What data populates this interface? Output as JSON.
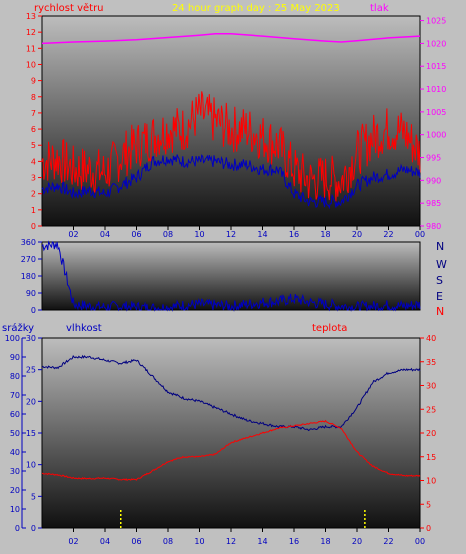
{
  "header": {
    "left_label": "rychlost větru",
    "title": "24 hour graph day : 25 May 2023",
    "right_label": "tlak"
  },
  "bottom_header": {
    "rain_label": "srážky",
    "humidity_label": "vlhkost",
    "temp_label": "teplota"
  },
  "compass": [
    "N",
    "W",
    "S",
    "E",
    "N"
  ],
  "x_ticks": [
    "02",
    "04",
    "06",
    "08",
    "10",
    "12",
    "14",
    "16",
    "18",
    "20",
    "22",
    "00"
  ],
  "colors": {
    "background": "#c0c0c0",
    "wind": "#ff0000",
    "wind_avg": "#0000c0",
    "pressure": "#ff00ff",
    "humidity": "#000080",
    "temperature": "#ff0000",
    "rain": "#ffff00",
    "axis_blue": "#0000c0",
    "title": "#ffff00"
  },
  "chart_data": [
    {
      "name": "wind-pressure",
      "type": "line",
      "x_range": [
        0,
        24
      ],
      "y_left": {
        "min": 0,
        "max": 13,
        "ticks": [
          "0",
          "1",
          "2",
          "3",
          "4",
          "5",
          "6",
          "7",
          "8",
          "9",
          "10",
          "11",
          "12",
          "13"
        ]
      },
      "y_right": {
        "min": 980,
        "max": 1026,
        "ticks": [
          "980",
          "985",
          "990",
          "995",
          "1000",
          "1005",
          "1010",
          "1015",
          "1020",
          "1025"
        ]
      },
      "series": [
        {
          "key": "pressure",
          "axis": "right",
          "x": [
            0,
            2,
            4,
            6,
            8,
            10,
            11,
            12,
            14,
            16,
            18,
            19,
            20,
            22,
            24
          ],
          "y": [
            1020,
            1020.3,
            1020.5,
            1020.8,
            1021.3,
            1021.8,
            1022.1,
            1022.1,
            1021.6,
            1021,
            1020.5,
            1020.3,
            1020.6,
            1021.2,
            1021.6
          ]
        },
        {
          "key": "wind_gust",
          "axis": "left",
          "x": [
            0,
            1,
            2,
            3,
            4,
            5,
            6,
            7,
            8,
            9,
            10,
            11,
            12,
            13,
            14,
            15,
            16,
            17,
            18,
            19,
            20,
            21,
            22,
            23,
            24
          ],
          "y": [
            4,
            4.2,
            3.5,
            3.5,
            3.3,
            4.3,
            5,
            5.5,
            6,
            6,
            7,
            6.5,
            6,
            6,
            5.5,
            5,
            3.5,
            2.8,
            3,
            2.8,
            4.5,
            5.5,
            6,
            5.8,
            4.5
          ]
        },
        {
          "key": "wind_avg",
          "axis": "left",
          "x": [
            0,
            1,
            2,
            3,
            4,
            5,
            6,
            7,
            8,
            9,
            10,
            11,
            12,
            13,
            14,
            15,
            16,
            17,
            18,
            19,
            20,
            21,
            22,
            23,
            24
          ],
          "y": [
            2.3,
            2.5,
            2,
            2.2,
            2,
            2.5,
            3,
            4,
            4.2,
            4,
            4,
            4,
            3.8,
            3.8,
            3.5,
            3.5,
            2,
            1.5,
            1.5,
            1.5,
            2.5,
            3,
            3.2,
            3.5,
            3.3
          ]
        }
      ]
    },
    {
      "name": "wind-direction",
      "type": "line",
      "x_range": [
        0,
        24
      ],
      "y": {
        "min": 0,
        "max": 360,
        "ticks": [
          "0",
          "90",
          "180",
          "270",
          "360"
        ]
      },
      "series": [
        {
          "key": "direction",
          "x": [
            0,
            1,
            2,
            3,
            4,
            5,
            6,
            7,
            8,
            9,
            10,
            11,
            12,
            13,
            14,
            15,
            16,
            17,
            18,
            19,
            20,
            21,
            22,
            23,
            24
          ],
          "y": [
            340,
            350,
            30,
            20,
            15,
            20,
            15,
            10,
            15,
            25,
            30,
            25,
            20,
            30,
            40,
            45,
            60,
            40,
            30,
            20,
            15,
            20,
            25,
            20,
            30
          ]
        }
      ]
    },
    {
      "name": "humidity-temperature",
      "type": "line",
      "x_range": [
        0,
        24
      ],
      "y_rain": {
        "min": 0,
        "max": 100,
        "ticks": [
          "0",
          "10",
          "20",
          "30",
          "40",
          "50",
          "60",
          "70",
          "80",
          "90",
          "100"
        ]
      },
      "y_humidity": {
        "min": 0,
        "max": 30,
        "ticks": [
          "0",
          "5",
          "10",
          "15",
          "20",
          "25",
          "30"
        ]
      },
      "y_temp": {
        "min": 0,
        "max": 40,
        "ticks": [
          "0",
          "5",
          "10",
          "15",
          "20",
          "25",
          "30",
          "35",
          "40"
        ]
      },
      "series": [
        {
          "key": "humidity",
          "axis": "humidity",
          "x": [
            0,
            1,
            2,
            3,
            4,
            5,
            6,
            7,
            8,
            9,
            10,
            11,
            12,
            13,
            14,
            15,
            16,
            17,
            18,
            19,
            20,
            21,
            22,
            23,
            24
          ],
          "y": [
            25.5,
            25.3,
            27,
            27,
            26.5,
            26,
            26.5,
            24,
            21.5,
            20.5,
            20,
            19,
            18,
            17,
            16.5,
            16,
            16,
            15.5,
            16,
            16,
            19,
            23,
            24.5,
            25,
            25
          ]
        },
        {
          "key": "temperature",
          "axis": "temp",
          "x": [
            0,
            1,
            2,
            3,
            4,
            5,
            6,
            7,
            8,
            9,
            10,
            11,
            12,
            13,
            14,
            15,
            16,
            17,
            18,
            19,
            20,
            21,
            22,
            23,
            24
          ],
          "y": [
            11.5,
            11.2,
            10.5,
            10.4,
            10.5,
            10.2,
            10.2,
            12,
            14,
            15,
            15,
            15.5,
            18,
            19,
            20,
            21,
            21.5,
            22,
            22.5,
            21,
            16,
            13,
            11.5,
            11,
            11
          ]
        },
        {
          "key": "rain",
          "axis": "rain",
          "type": "bar",
          "x": [
            5,
            20.5
          ],
          "y": [
            10,
            10
          ]
        }
      ]
    }
  ]
}
